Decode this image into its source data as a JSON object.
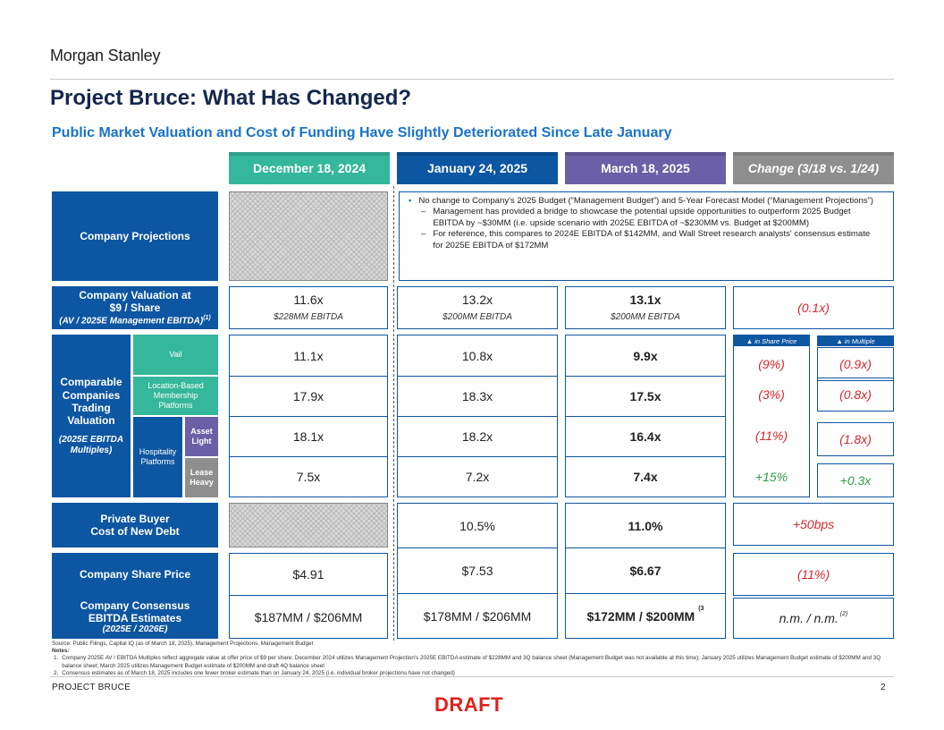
{
  "brand": "Morgan Stanley",
  "title": "Project Bruce: What Has Changed?",
  "subtitle": "Public Market Valuation and Cost of Funding Have Slightly Deteriorated Since Late January",
  "columns": {
    "dec": "December 18, 2024",
    "jan": "January 24, 2025",
    "mar": "March 18, 2025",
    "chg": "Change (3/18 vs. 1/24)"
  },
  "colors": {
    "navy": "#0d56a1",
    "teal": "#34b79a",
    "purple": "#6b5fa7",
    "gray": "#8e8e8e",
    "negative": "#d7262e",
    "positive": "#2f9d4a"
  },
  "labels": {
    "projections": "Company Projections",
    "valuation_l1": "Company Valuation at",
    "valuation_l2": "$9 / Share",
    "valuation_l3": "(AV / 2025E Management EBITDA)",
    "valuation_sup": "(1)",
    "comps_title": "Comparable Companies Trading Valuation",
    "comps_sub": "(2025E EBITDA Multiples)",
    "vail": "Vail",
    "location_based": "Location-Based Membership Platforms",
    "hospitality": "Hospitality Platforms",
    "asset_light": "Asset Light",
    "lease_heavy": "Lease Heavy",
    "private_buyer_l1": "Private Buyer",
    "private_buyer_l2": "Cost of New Debt",
    "share_price": "Company Share Price",
    "consensus_l1": "Company Consensus",
    "consensus_l2": "EBITDA Estimates",
    "consensus_l3": "(2025E / 2026E)"
  },
  "projections_text": {
    "bullet": "No change to Company's 2025 Budget (“Management Budget”) and 5-Year Forecast Model (“Management Projections”)",
    "sub1": "Management has provided a bridge to showcase the potential upside opportunities to outperform 2025 Budget EBITDA by ~$30MM (i.e. upside scenario with 2025E EBITDA of ~$230MM vs. Budget at $200MM)",
    "sub2": "For reference, this compares to 2024E EBITDA of $142MM, and Wall Street research analysts' consensus estimate for 2025E EBITDA of $172MM"
  },
  "valuation": {
    "dec": {
      "multiple": "11.6x",
      "ebitda": "$228MM EBITDA"
    },
    "jan": {
      "multiple": "13.2x",
      "ebitda": "$200MM EBITDA"
    },
    "mar": {
      "multiple": "13.1x",
      "ebitda": "$200MM EBITDA"
    },
    "change": "(0.1x)"
  },
  "comps": {
    "dec": [
      "11.1x",
      "17.9x",
      "18.1x",
      "7.5x"
    ],
    "jan": [
      "10.8x",
      "18.3x",
      "18.2x",
      "7.2x"
    ],
    "mar": [
      "9.9x",
      "17.5x",
      "16.4x",
      "7.4x"
    ],
    "share_price_change": [
      "(9%)",
      "(3%)",
      "(11%)",
      "+15%"
    ],
    "multiple_change": [
      "(0.9x)",
      "(0.8x)",
      "(1.8x)",
      "+0.3x"
    ],
    "pill_share_price": "▲ in Share Price",
    "pill_multiple": "▲ in Multiple"
  },
  "cost_of_debt": {
    "jan": "10.5%",
    "mar": "11.0%",
    "change": "+50bps"
  },
  "share_price": {
    "dec": "$4.91",
    "jan": "$7.53",
    "mar": "$6.67",
    "change": "(11%)"
  },
  "consensus": {
    "dec": "$187MM / $206MM",
    "jan": "$178MM / $206MM",
    "mar": "$172MM / $200MM",
    "mar_sup": "(3",
    "change": "n.m. / n.m.",
    "change_sup": "(2)"
  },
  "notes": {
    "source": "Source: Public Filings, Capital IQ (as of March 18, 2025), Management Projections, Management Budget",
    "heading": "Notes:",
    "n1_num": "1.",
    "n1": "Company 2025E AV / EBITDA Multiples reflect aggregate value at offer price of $9 per share; December 2024 utilizes Management Projection's 2025E EBITDA estimate of $228MM and 3Q balance sheet (Management Budget was not available at this time); January 2025 utilizes Management Budget estimate of $200MM and 3Q balance sheet; March 2025 utilizes Management Budget estimate of $200MM and draft 4Q balance sheet",
    "n2_num": "2.",
    "n2": "Consensus estimates as of March 18, 2025 includes one fewer broker estimate than on January 24, 2025 (i.e. individual broker projections have not changed)"
  },
  "footer": "PROJECT BRUCE",
  "page_number": "2",
  "draft": "DRAFT"
}
